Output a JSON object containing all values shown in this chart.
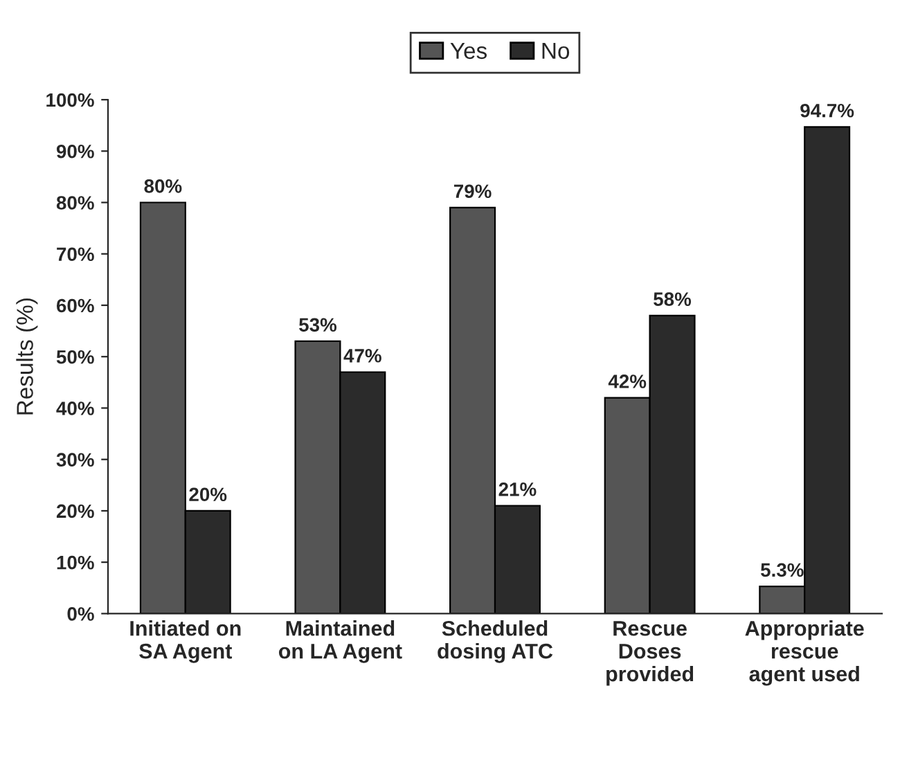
{
  "chart_data": {
    "type": "bar",
    "ylabel": "Results (%)",
    "categories": [
      "Initiated on\nSA Agent",
      "Maintained\non LA Agent",
      "Scheduled\ndosing ATC",
      "Rescue\nDoses\nprovided",
      "Appropriate\nrescue\nagent used"
    ],
    "series": [
      {
        "name": "Yes",
        "color": "#555555",
        "values": [
          80,
          53,
          79,
          42,
          5.3
        ]
      },
      {
        "name": "No",
        "color": "#2b2b2b",
        "values": [
          20,
          47,
          21,
          58,
          94.7
        ]
      }
    ],
    "value_labels": [
      [
        "80%",
        "53%",
        "79%",
        "42%",
        "5.3%"
      ],
      [
        "20%",
        "47%",
        "21%",
        "58%",
        "94.7%"
      ]
    ],
    "ylim": [
      0,
      100
    ],
    "yticks": [
      {
        "value": 0,
        "label": "0%"
      },
      {
        "value": 10,
        "label": "10%"
      },
      {
        "value": 20,
        "label": "20%"
      },
      {
        "value": 30,
        "label": "30%"
      },
      {
        "value": 40,
        "label": "40%"
      },
      {
        "value": 50,
        "label": "50%"
      },
      {
        "value": 60,
        "label": "60%"
      },
      {
        "value": 70,
        "label": "70%"
      },
      {
        "value": 80,
        "label": "80%"
      },
      {
        "value": 90,
        "label": "90%"
      },
      {
        "value": 100,
        "label": "100%"
      }
    ],
    "grid": false,
    "legend": "top"
  }
}
